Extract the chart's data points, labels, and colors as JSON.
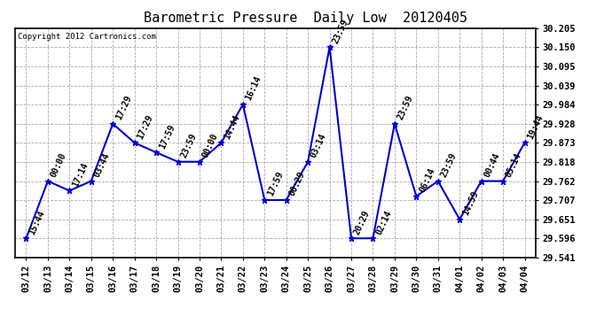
{
  "title": "Barometric Pressure  Daily Low  20120405",
  "copyright": "Copyright 2012 Cartronics.com",
  "dates": [
    "03/12",
    "03/13",
    "03/14",
    "03/15",
    "03/16",
    "03/17",
    "03/18",
    "03/19",
    "03/20",
    "03/21",
    "03/22",
    "03/23",
    "03/24",
    "03/25",
    "03/26",
    "03/27",
    "03/28",
    "03/29",
    "03/30",
    "03/31",
    "04/01",
    "04/02",
    "04/03",
    "04/04"
  ],
  "values": [
    29.596,
    29.762,
    29.734,
    29.762,
    29.928,
    29.873,
    29.845,
    29.818,
    29.818,
    29.873,
    29.984,
    29.707,
    29.707,
    29.818,
    30.15,
    29.596,
    29.596,
    29.928,
    29.718,
    29.762,
    29.651,
    29.762,
    29.762,
    29.873
  ],
  "time_labels": [
    "15:44",
    "00:00",
    "17:14",
    "03:44",
    "17:29",
    "17:29",
    "17:59",
    "23:59",
    "00:00",
    "14:44",
    "16:14",
    "17:59",
    "00:29",
    "03:14",
    "23:59",
    "20:29",
    "02:14",
    "23:59",
    "06:14",
    "23:59",
    "14:59",
    "00:44",
    "05:14",
    "19:44"
  ],
  "ylim_min": 29.541,
  "ylim_max": 30.205,
  "ytick_labels": [
    "29.541",
    "29.596",
    "29.651",
    "29.707",
    "29.762",
    "29.818",
    "29.873",
    "29.928",
    "29.984",
    "30.039",
    "30.095",
    "30.150",
    "30.205"
  ],
  "ytick_values": [
    29.541,
    29.596,
    29.651,
    29.707,
    29.762,
    29.818,
    29.873,
    29.928,
    29.984,
    30.039,
    30.095,
    30.15,
    30.205
  ],
  "line_color": "#0000cc",
  "marker_color": "#0000cc",
  "bg_color": "#ffffff",
  "plot_bg_color": "#ffffff",
  "grid_color": "#aaaaaa",
  "title_fontsize": 11,
  "tick_fontsize": 7.5,
  "label_fontsize": 7,
  "copyright_fontsize": 6.5
}
